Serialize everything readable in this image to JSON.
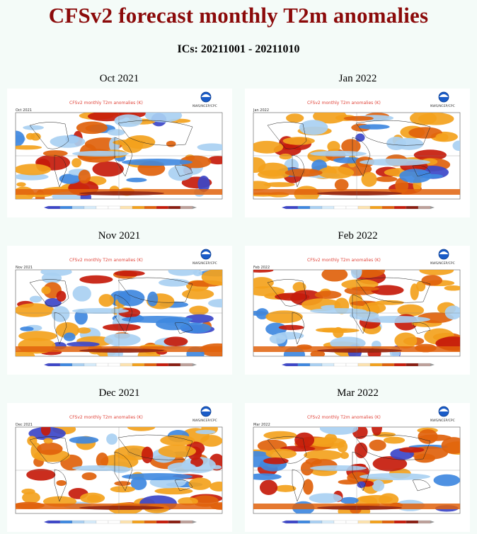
{
  "title": "CFSv2 forecast monthly T2m anomalies",
  "subtitle": "ICs: 20211001 - 20211010",
  "plot_header": "CFSv2 monthly T2m anomalies (K)",
  "agency": "NWS/NCEP/CPC",
  "colors": {
    "title": "#8b0a0a",
    "deep_blue": "#3c46c8",
    "blue": "#3f88e0",
    "light_blue": "#a9d0f2",
    "orange": "#f3a21d",
    "dark_orange": "#e0620c",
    "red": "#c61b0b",
    "dark_red": "#8a1e12"
  },
  "panels": [
    {
      "label": "Oct 2021",
      "tag": "Oct 2021",
      "pattern": "mixed"
    },
    {
      "label": "Jan 2022",
      "tag": "Jan 2022",
      "pattern": "warm"
    },
    {
      "label": "Nov 2021",
      "tag": "Nov 2021",
      "pattern": "mixed"
    },
    {
      "label": "Feb 2022",
      "tag": "Feb 2022",
      "pattern": "warm-north"
    },
    {
      "label": "Dec 2021",
      "tag": "Dec 2021",
      "pattern": "warm"
    },
    {
      "label": "Mar 2022",
      "tag": "Mar 2022",
      "pattern": "warm-north"
    }
  ]
}
